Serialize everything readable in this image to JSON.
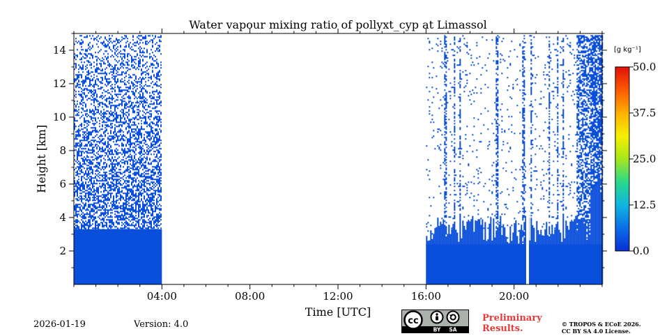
{
  "chart_data": {
    "type": "heatmap",
    "title": "Water vapour mixing ratio of pollyxt_cyp at Limassol",
    "xlabel": "Time [UTC]",
    "ylabel": "Height [km]",
    "xlim": [
      0,
      24
    ],
    "ylim": [
      0,
      15
    ],
    "x_ticks": [
      {
        "value": 4,
        "label": "04:00"
      },
      {
        "value": 8,
        "label": "08:00"
      },
      {
        "value": 12,
        "label": "12:00"
      },
      {
        "value": 16,
        "label": "16:00"
      },
      {
        "value": 20,
        "label": "20:00"
      }
    ],
    "y_ticks": [
      {
        "value": 2,
        "label": "2"
      },
      {
        "value": 4,
        "label": "4"
      },
      {
        "value": 6,
        "label": "6"
      },
      {
        "value": 8,
        "label": "8"
      },
      {
        "value": 10,
        "label": "10"
      },
      {
        "value": 12,
        "label": "12"
      },
      {
        "value": 14,
        "label": "14"
      }
    ],
    "colorbar": {
      "unit": "[g kg⁻¹]",
      "min": 0,
      "max": 50,
      "ticks": [
        {
          "value": 0,
          "label": "0.0"
        },
        {
          "value": 12.5,
          "label": "12.5"
        },
        {
          "value": 25,
          "label": "25.0"
        },
        {
          "value": 37.5,
          "label": "37.5"
        },
        {
          "value": 50,
          "label": "50.0"
        }
      ],
      "colormap": [
        "#0a2fd6",
        "#0a6ee6",
        "#10b5e0",
        "#2ad98a",
        "#a6e61c",
        "#f6f000",
        "#ffb000",
        "#ff5a00",
        "#e0100a"
      ]
    },
    "data_color": "#0a4fdc",
    "segments": [
      {
        "start": 0.0,
        "end": 4.0,
        "solid_top": 3.3,
        "noise_top": 14.9,
        "noise_density": 0.55
      },
      {
        "start": 16.0,
        "end": 24.0,
        "solid_top": 2.4,
        "noise_top": 14.9,
        "noise_density": 0.12
      }
    ]
  },
  "footer": {
    "date": "2026-01-19",
    "version": "Version: 4.0",
    "preliminary": [
      "Preliminary",
      "Results."
    ],
    "copyright": [
      "© TROPOS & ECoE 2026.",
      "CC BY SA 4.0 License."
    ],
    "license_badge": {
      "cc": "cc",
      "by": "BY",
      "sa": "SA"
    }
  }
}
